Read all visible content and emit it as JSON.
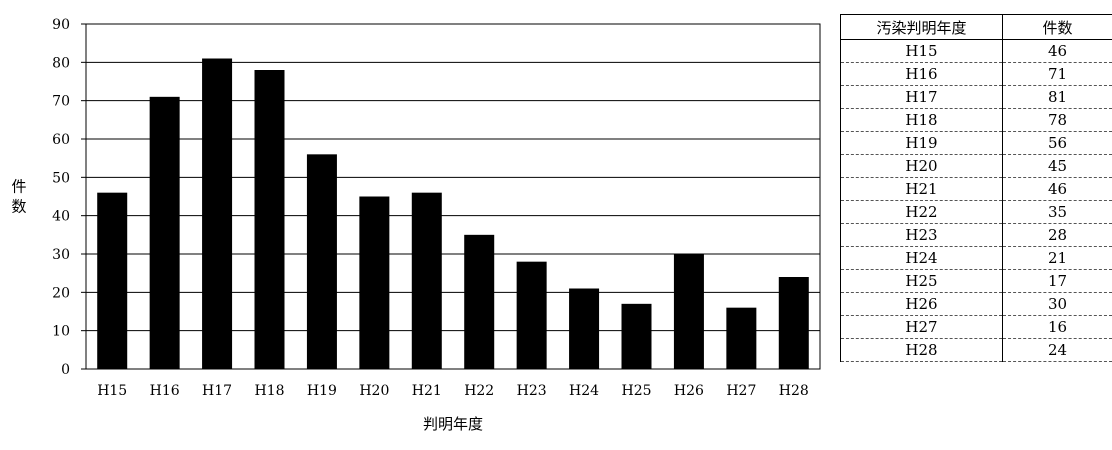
{
  "chart_data": {
    "type": "bar",
    "title": "",
    "xlabel": "判明年度",
    "ylabel": "件数",
    "ylim": [
      0,
      90
    ],
    "yticks": [
      0,
      10,
      20,
      30,
      40,
      50,
      60,
      70,
      80,
      90
    ],
    "categories": [
      "H15",
      "H16",
      "H17",
      "H18",
      "H19",
      "H20",
      "H21",
      "H22",
      "H23",
      "H24",
      "H25",
      "H26",
      "H27",
      "H28"
    ],
    "values": [
      46,
      71,
      81,
      78,
      56,
      45,
      46,
      35,
      28,
      21,
      17,
      30,
      16,
      24
    ],
    "bar_color": "#000000",
    "grid": true,
    "legend": "none"
  },
  "table": {
    "headers": [
      "汚染判明年度",
      "件数"
    ],
    "rows": [
      [
        "H15",
        "46"
      ],
      [
        "H16",
        "71"
      ],
      [
        "H17",
        "81"
      ],
      [
        "H18",
        "78"
      ],
      [
        "H19",
        "56"
      ],
      [
        "H20",
        "45"
      ],
      [
        "H21",
        "46"
      ],
      [
        "H22",
        "35"
      ],
      [
        "H23",
        "28"
      ],
      [
        "H24",
        "21"
      ],
      [
        "H25",
        "17"
      ],
      [
        "H26",
        "30"
      ],
      [
        "H27",
        "16"
      ],
      [
        "H28",
        "24"
      ]
    ]
  }
}
